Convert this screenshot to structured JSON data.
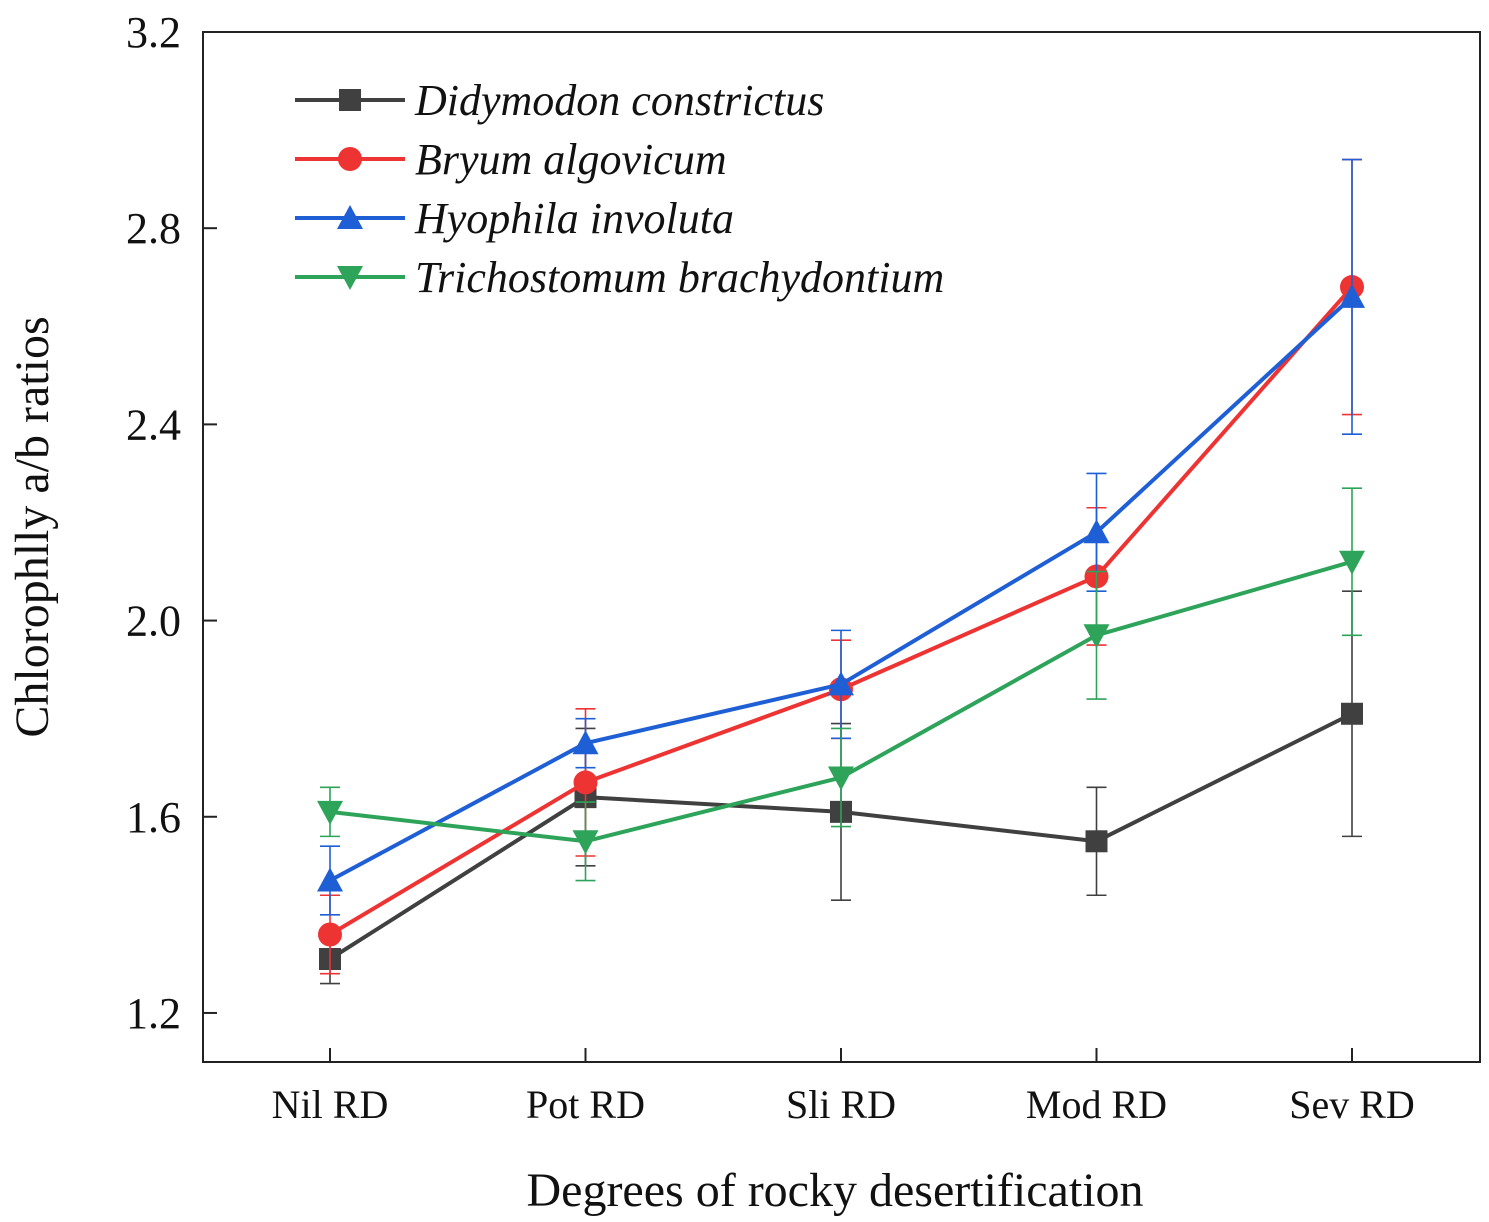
{
  "chart_data": {
    "type": "line",
    "title": "",
    "xlabel": "Degrees of rocky desertification",
    "ylabel": "Chlorophlly a/b ratios",
    "categories": [
      "Nil RD",
      "Pot RD",
      "Sli RD",
      "Mod RD",
      "Sev RD"
    ],
    "ylim": [
      1.1,
      3.2
    ],
    "yticks": [
      1.2,
      1.6,
      2.0,
      2.4,
      2.8,
      3.2
    ],
    "ytick_labels": [
      "1.2",
      "1.6",
      "2.0",
      "2.4",
      "2.8",
      "3.2"
    ],
    "grid": false,
    "legend_position": "top-left",
    "series": [
      {
        "name": "Didymodon constrictus",
        "color": "#404040",
        "marker": "square",
        "values": [
          1.31,
          1.64,
          1.61,
          1.55,
          1.81
        ],
        "errors": [
          0.05,
          0.14,
          0.18,
          0.11,
          0.25
        ]
      },
      {
        "name": "Bryum algovicum",
        "color": "#ee3333",
        "marker": "circle",
        "values": [
          1.36,
          1.67,
          1.86,
          2.09,
          2.68
        ],
        "errors": [
          0.08,
          0.15,
          0.1,
          0.14,
          0.26
        ]
      },
      {
        "name": "Hyophila involuta",
        "color": "#1f5fd6",
        "marker": "triangle-up",
        "values": [
          1.47,
          1.75,
          1.87,
          2.18,
          2.66
        ],
        "errors": [
          0.07,
          0.05,
          0.11,
          0.12,
          0.28
        ]
      },
      {
        "name": "Trichostomum brachydontium",
        "color": "#2ea35a",
        "marker": "triangle-down",
        "values": [
          1.61,
          1.55,
          1.68,
          1.97,
          2.12
        ],
        "errors": [
          0.05,
          0.08,
          0.1,
          0.13,
          0.15
        ]
      }
    ]
  }
}
